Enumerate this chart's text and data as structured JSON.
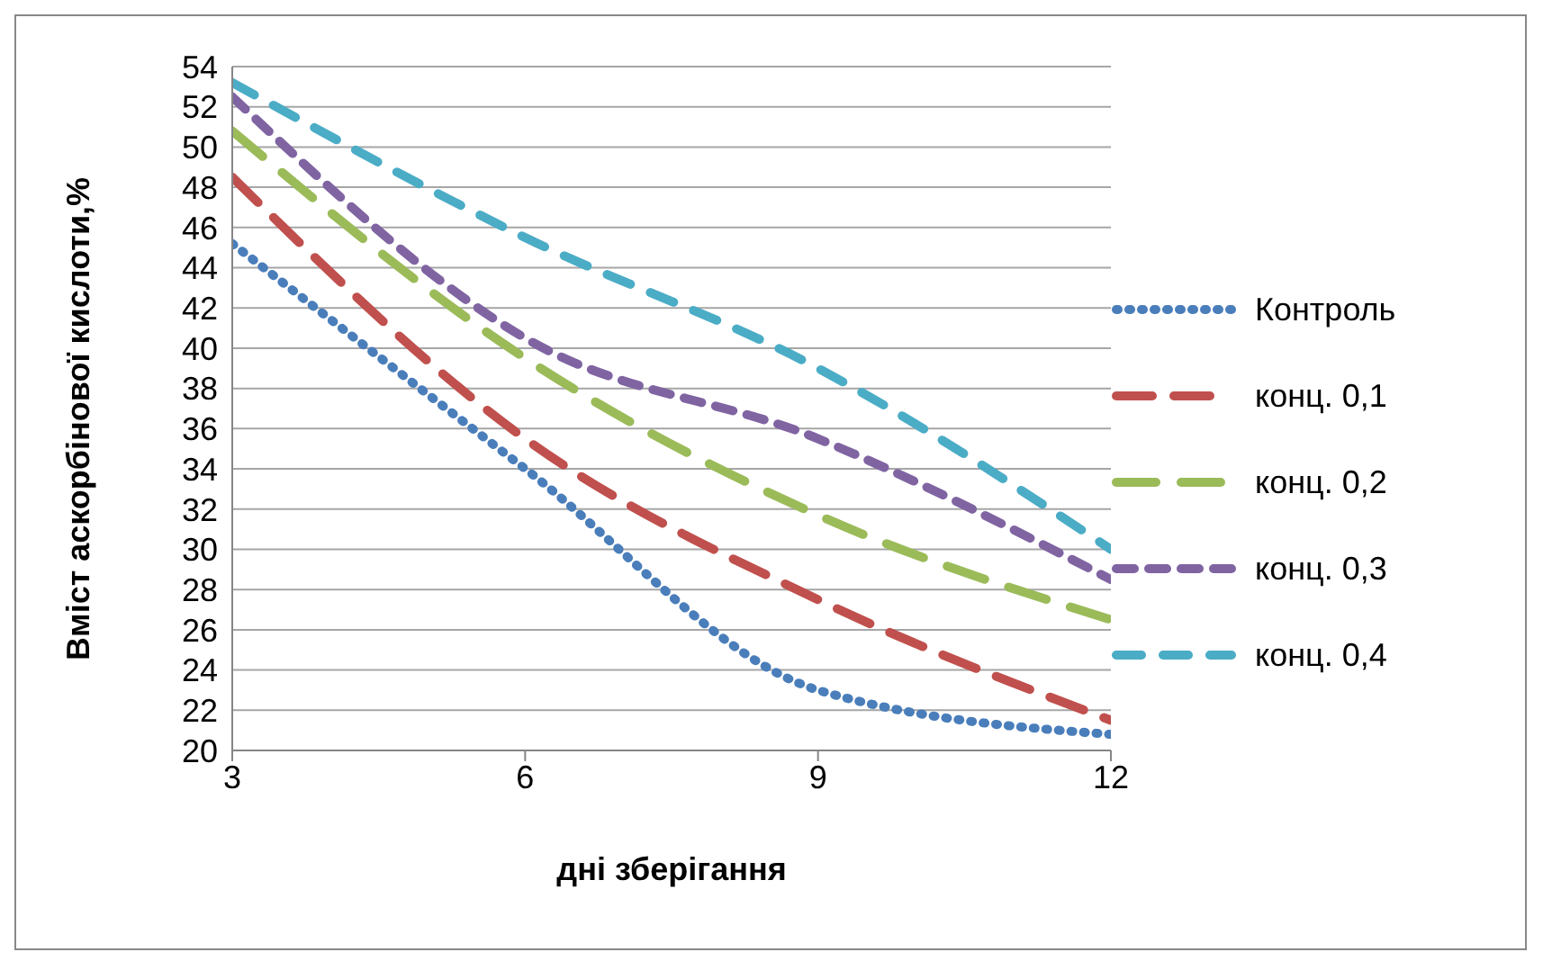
{
  "chart_data": {
    "type": "line",
    "xlabel": "дні зберігання",
    "ylabel": "Вміст аскорбінової кислоти,%",
    "x": [
      3,
      6,
      9,
      12
    ],
    "series": [
      {
        "name": "Контроль",
        "color": "#4a7ebb",
        "values": [
          45.2,
          34,
          23,
          20.8
        ],
        "line_style": "dotted"
      },
      {
        "name": "конц. 0,1",
        "color": "#c0504d",
        "values": [
          48.5,
          35.5,
          27.5,
          21.5
        ],
        "line_style": "dashed"
      },
      {
        "name": "конц. 0,2",
        "color": "#9bbb59",
        "values": [
          50.8,
          39.5,
          31.7,
          26.5
        ],
        "line_style": "dashed"
      },
      {
        "name": "конц. 0,3",
        "color": "#8064a2",
        "values": [
          52.5,
          40.5,
          35.5,
          28.5
        ],
        "line_style": "dashed"
      },
      {
        "name": "конц. 0,4",
        "color": "#4bacc6",
        "values": [
          53.2,
          45.5,
          39,
          30
        ],
        "line_style": "dashed"
      }
    ],
    "xlim": [
      3,
      12
    ],
    "xticks": [
      3,
      6,
      9,
      12
    ],
    "ylim": [
      20,
      54
    ],
    "yticks": [
      20,
      22,
      24,
      26,
      28,
      30,
      32,
      34,
      36,
      38,
      40,
      42,
      44,
      46,
      48,
      50,
      52,
      54
    ],
    "grid": "y",
    "legend": "right",
    "marker": "none"
  }
}
